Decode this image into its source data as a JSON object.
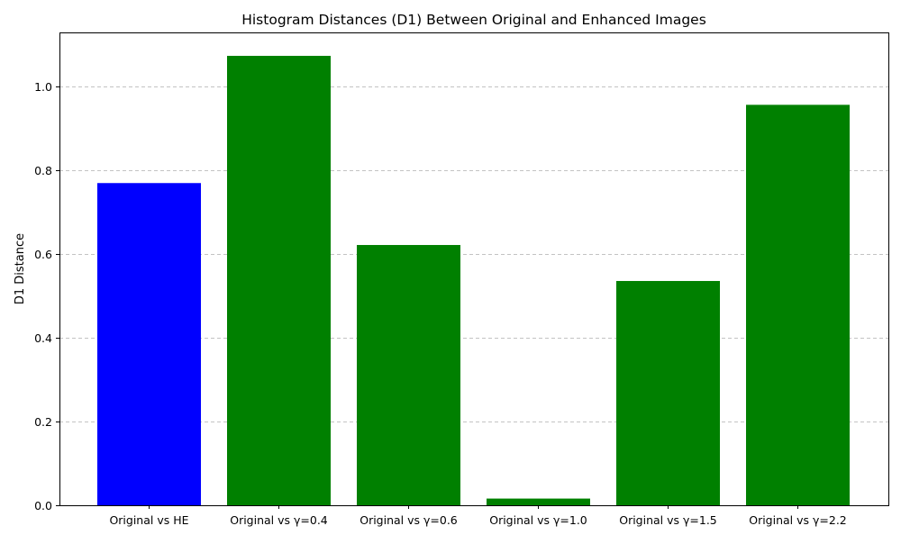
{
  "chart_data": {
    "type": "bar",
    "title": "Histogram Distances (D1) Between Original and Enhanced Images",
    "xlabel": "",
    "ylabel": "D1 Distance",
    "categories": [
      "Original vs HE",
      "Original vs γ=0.4",
      "Original vs γ=0.6",
      "Original vs γ=1.0",
      "Original vs γ=1.5",
      "Original vs γ=2.2"
    ],
    "values": [
      0.77,
      1.074,
      0.622,
      0.016,
      0.536,
      0.957
    ],
    "bar_colors": [
      "#0000ff",
      "#008000",
      "#008000",
      "#008000",
      "#008000",
      "#008000"
    ],
    "ylim": [
      0,
      1.13
    ],
    "yticks": [
      0.0,
      0.2,
      0.4,
      0.6,
      0.8,
      1.0
    ],
    "ytick_labels": [
      "0.0",
      "0.2",
      "0.4",
      "0.6",
      "0.8",
      "1.0"
    ],
    "grid": {
      "axis": "y",
      "style": "dashed",
      "color": "#b0b0b0"
    },
    "legend": "none"
  }
}
